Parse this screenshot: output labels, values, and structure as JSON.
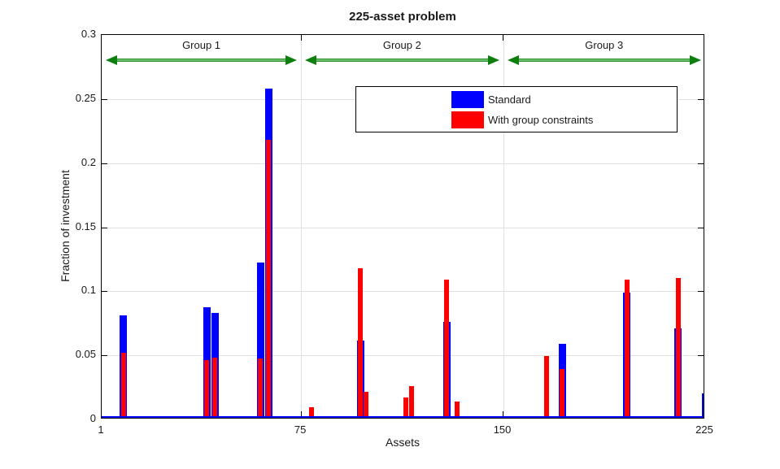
{
  "chart_data": {
    "type": "bar",
    "title": "225-asset problem",
    "xlabel": "Assets",
    "ylabel": "Fraction of investment",
    "xlim": [
      1,
      225
    ],
    "ylim": [
      0,
      0.3
    ],
    "xticks": {
      "values": [
        1,
        75,
        150,
        225
      ],
      "labels": [
        "1",
        "75",
        "150",
        "225"
      ]
    },
    "yticks": {
      "values": [
        0,
        0.05,
        0.1,
        0.15,
        0.2,
        0.25,
        0.3
      ],
      "labels": [
        "0",
        "0.05",
        "0.1",
        "0.15",
        "0.2",
        "0.25",
        "0.3"
      ]
    },
    "grid": true,
    "legend": {
      "position": "upper-center",
      "entries": [
        {
          "label": "Standard",
          "color": "#0000ff"
        },
        {
          "label": "With group constraints",
          "color": "#ff0000"
        }
      ]
    },
    "groups": [
      {
        "label": "Group 1",
        "x_start": 1,
        "x_end": 75
      },
      {
        "label": "Group 2",
        "x_start": 75,
        "x_end": 150
      },
      {
        "label": "Group 3",
        "x_start": 150,
        "x_end": 225
      }
    ],
    "series": [
      {
        "name": "Standard",
        "color": "#0000ff",
        "points": [
          [
            9,
            0.08
          ],
          [
            40,
            0.086
          ],
          [
            43,
            0.082
          ],
          [
            60,
            0.121
          ],
          [
            63,
            0.257
          ],
          [
            97,
            0.06
          ],
          [
            129,
            0.075
          ],
          [
            172,
            0.058
          ],
          [
            196,
            0.098
          ],
          [
            215,
            0.07
          ],
          [
            225,
            0.019
          ]
        ]
      },
      {
        "name": "With group constraints",
        "color": "#ff0000",
        "points": [
          [
            9,
            0.051
          ],
          [
            40,
            0.045
          ],
          [
            43,
            0.047
          ],
          [
            60,
            0.046
          ],
          [
            63,
            0.217
          ],
          [
            79,
            0.008
          ],
          [
            97,
            0.117
          ],
          [
            99,
            0.02
          ],
          [
            114,
            0.016
          ],
          [
            116,
            0.025
          ],
          [
            129,
            0.108
          ],
          [
            133,
            0.013
          ],
          [
            166,
            0.048
          ],
          [
            172,
            0.038
          ],
          [
            196,
            0.108
          ],
          [
            215,
            0.109
          ]
        ]
      }
    ],
    "styles": {
      "background": "#ffffff",
      "axis_color": "#000000",
      "grid_color": "#e0e0e0",
      "baseline_color": "#0000ff",
      "arrow_color": "#0c7f0c",
      "arrow_color_light": "#8fcf8f",
      "text_color": "#1a1a1a"
    }
  }
}
